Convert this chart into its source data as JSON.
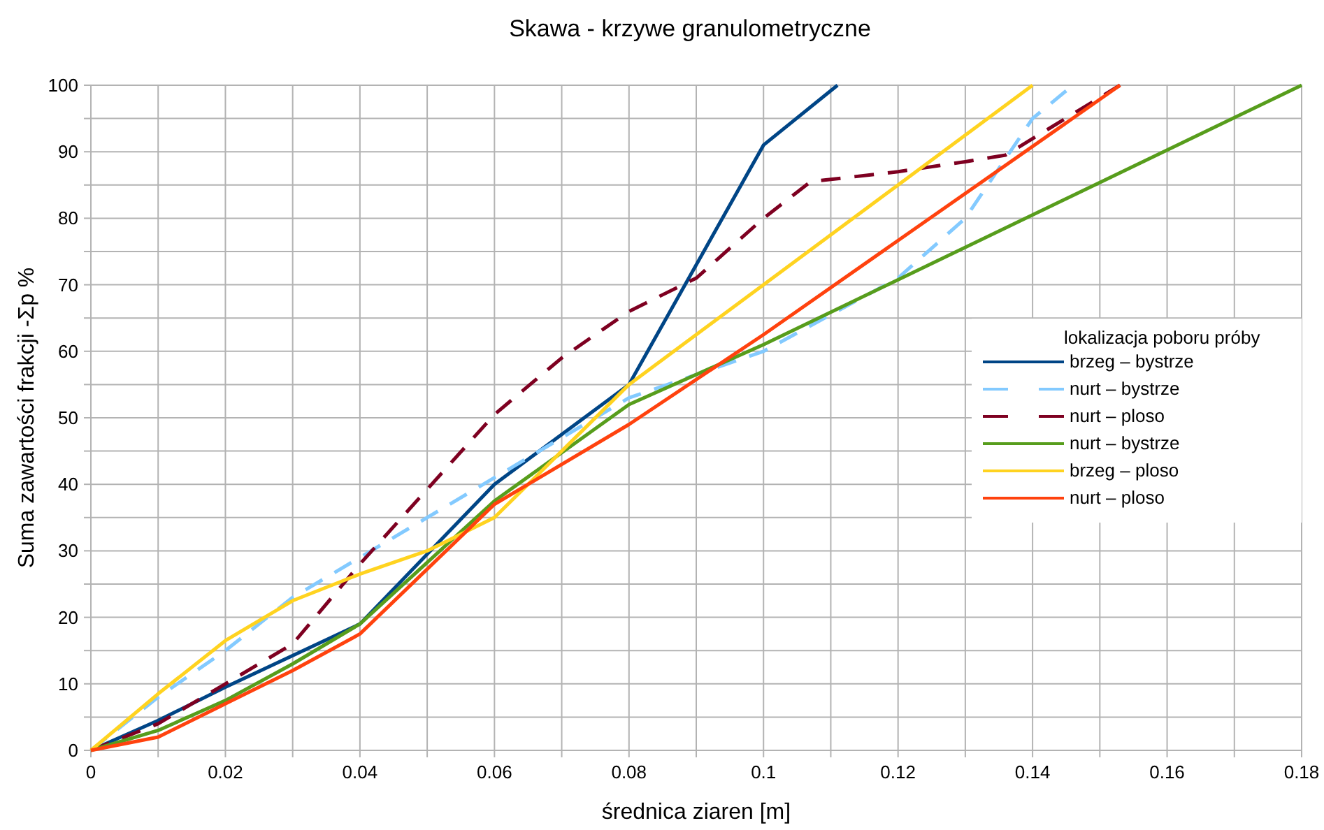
{
  "chart_data": {
    "type": "line",
    "title": "Skawa - krzywe granulometryczne",
    "xlabel": "średnica ziaren [m]",
    "ylabel": "Suma zawartości frakcji -Σp %",
    "legend_title": "lokalizacja poboru próby",
    "legend": "right",
    "grid": true,
    "marker": "none",
    "xlim": [
      0,
      0.18
    ],
    "xticks": [
      0,
      {
        "value": 0.01,
        "label": null
      },
      0.02,
      {
        "value": 0.03,
        "label": null
      },
      0.04,
      {
        "value": 0.05,
        "label": null
      },
      0.06,
      {
        "value": 0.07,
        "label": null
      },
      0.08,
      {
        "value": 0.09,
        "label": null
      },
      0.1,
      {
        "value": 0.11,
        "label": null
      },
      0.12,
      {
        "value": 0.13,
        "label": null
      },
      0.14,
      {
        "value": 0.15,
        "label": null
      },
      0.16,
      {
        "value": 0.17,
        "label": null
      },
      0.18
    ],
    "ylim": [
      0,
      100
    ],
    "yticks": [
      0,
      {
        "value": 5,
        "label": null
      },
      10,
      {
        "value": 15,
        "label": null
      },
      20,
      {
        "value": 25,
        "label": null
      },
      30,
      {
        "value": 35,
        "label": null
      },
      40,
      {
        "value": 45,
        "label": null
      },
      50,
      {
        "value": 55,
        "label": null
      },
      60,
      {
        "value": 65,
        "label": null
      },
      70,
      {
        "value": 75,
        "label": null
      },
      80,
      {
        "value": 85,
        "label": null
      },
      90,
      {
        "value": 95,
        "label": null
      },
      100
    ],
    "series": [
      {
        "name": "brzeg – bystrze",
        "color": "#004586",
        "line_style": "solid",
        "x": [
          0,
          0.01,
          0.02,
          0.04,
          0.06,
          0.08,
          0.1,
          0.111
        ],
        "values": [
          0,
          4.5,
          9.5,
          19,
          40,
          55,
          91,
          100
        ]
      },
      {
        "name": "nurt – bystrze",
        "color": "#83caff",
        "line_style": "dashed",
        "x": [
          0,
          0.01,
          0.02,
          0.03,
          0.04,
          0.06,
          0.08,
          0.1,
          0.12,
          0.13,
          0.14,
          0.146
        ],
        "values": [
          0,
          8,
          15,
          23,
          29,
          41,
          53,
          60,
          71,
          80,
          95,
          100
        ]
      },
      {
        "name": "nurt – ploso",
        "color": "#7e0021",
        "line_style": "dashed",
        "x": [
          0,
          0.01,
          0.02,
          0.03,
          0.04,
          0.06,
          0.07,
          0.08,
          0.09,
          0.1,
          0.107,
          0.12,
          0.13,
          0.136,
          0.153
        ],
        "values": [
          0,
          4,
          10,
          16,
          28,
          50.5,
          59,
          66,
          71,
          80,
          85.5,
          87,
          88.5,
          89.5,
          100
        ]
      },
      {
        "name": "nurt – bystrze",
        "color": "#579d1c",
        "line_style": "solid",
        "x": [
          0,
          0.01,
          0.02,
          0.03,
          0.04,
          0.06,
          0.08,
          0.1,
          0.18
        ],
        "values": [
          0,
          3,
          7.5,
          13,
          19,
          37.5,
          52,
          61,
          100
        ]
      },
      {
        "name": "brzeg – ploso",
        "color": "#ffd320",
        "line_style": "solid",
        "x": [
          0,
          0.01,
          0.02,
          0.03,
          0.04,
          0.05,
          0.06,
          0.08,
          0.14
        ],
        "values": [
          0,
          8.5,
          16.5,
          22.5,
          26.5,
          30,
          35,
          55,
          100
        ]
      },
      {
        "name": "nurt – ploso",
        "color": "#ff420e",
        "line_style": "solid",
        "x": [
          0,
          0.01,
          0.02,
          0.03,
          0.04,
          0.06,
          0.08,
          0.1,
          0.153
        ],
        "values": [
          0,
          2,
          7,
          12,
          17.5,
          37,
          49,
          62.5,
          100
        ]
      }
    ]
  }
}
